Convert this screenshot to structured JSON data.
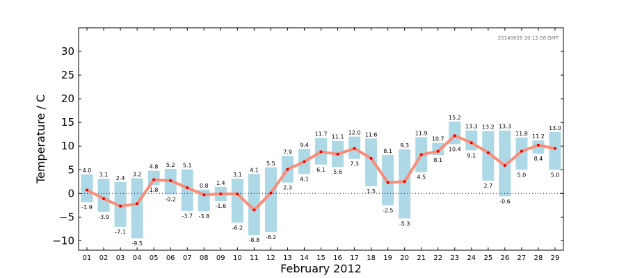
{
  "chart_data": {
    "type": "bar",
    "xlabel": "February 2012",
    "ylabel": "Temperature / C",
    "timestamp": "20140626 20:12:58 GMT",
    "ylim": [
      -12,
      35
    ],
    "yticks": [
      -10,
      -5,
      0,
      5,
      10,
      15,
      20,
      25,
      30
    ],
    "yticklabels": [
      "−10",
      "−5",
      "0",
      "5",
      "10",
      "15",
      "20",
      "25",
      "30"
    ],
    "grid": false,
    "zero_line": true,
    "categories": [
      "01",
      "02",
      "03",
      "04",
      "05",
      "06",
      "07",
      "08",
      "09",
      "10",
      "11",
      "12",
      "13",
      "14",
      "15",
      "16",
      "17",
      "18",
      "19",
      "20",
      "21",
      "22",
      "23",
      "24",
      "25",
      "26",
      "27",
      "28",
      "29"
    ],
    "series": [
      {
        "name": "",
        "kind": "max",
        "values": [
          4.0,
          3.1,
          2.4,
          3.2,
          4.8,
          5.2,
          5.1,
          0.8,
          1.4,
          3.1,
          4.1,
          5.5,
          7.9,
          9.4,
          11.7,
          11.1,
          12.0,
          11.6,
          8.1,
          9.3,
          11.9,
          10.7,
          15.2,
          13.3,
          13.2,
          13.3,
          11.8,
          11.2,
          13.0
        ]
      },
      {
        "name": "",
        "kind": "min",
        "values": [
          -1.9,
          -3.9,
          -7.1,
          -9.5,
          1.8,
          -0.2,
          -3.7,
          -3.8,
          -1.6,
          -6.2,
          -8.8,
          -8.2,
          2.3,
          4.1,
          6.1,
          5.6,
          7.3,
          1.5,
          -2.5,
          -5.3,
          4.5,
          8.1,
          10.4,
          9.1,
          2.7,
          -0.6,
          5.0,
          8.4,
          5.0
        ]
      },
      {
        "name": "",
        "kind": "mean",
        "values": [
          0.7,
          -1.1,
          -2.7,
          -2.2,
          2.9,
          2.7,
          1.2,
          -0.3,
          -0.1,
          -0.1,
          -3.5,
          0.1,
          5.1,
          6.7,
          8.8,
          8.3,
          9.5,
          7.4,
          2.3,
          2.5,
          8.2,
          8.9,
          12.2,
          10.7,
          8.6,
          5.9,
          8.9,
          10.2,
          9.5
        ]
      }
    ],
    "colors": {
      "range_bar": "#add8e6",
      "mean_line": "#fa8c78",
      "mean_marker": "#ee0000",
      "zero_line": "#0000cc"
    }
  }
}
